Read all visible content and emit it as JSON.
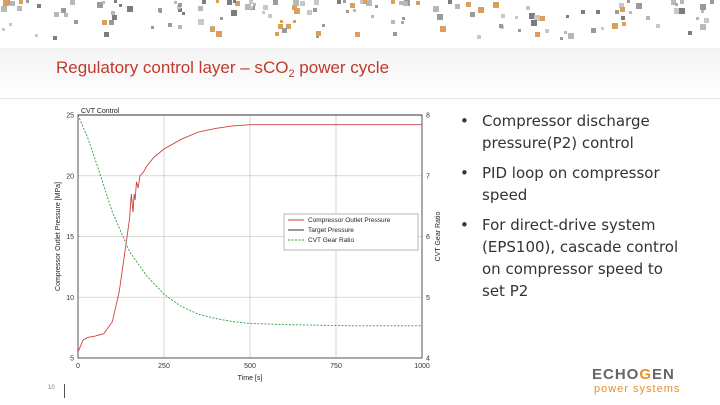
{
  "slide": {
    "title_main": "Regulatory control layer – s",
    "title_co": "CO",
    "title_sub": "2",
    "title_end": " power cycle",
    "page_number": "10"
  },
  "bullets": [
    "Compressor discharge pressure(P2) control",
    "PID loop on compressor speed",
    "For direct-drive system (EPS100), cascade control on compressor speed to set P2"
  ],
  "logo": {
    "word_start": "ECHO",
    "word_accent": "G",
    "word_end": "EN",
    "tagline": "power systems"
  },
  "colors": {
    "accent": "#c0392b",
    "pressure": "#d04040",
    "target": "#333333",
    "gear": "#2e9e3e",
    "logo_orange": "#e8912d"
  },
  "chart_data": {
    "type": "line",
    "title": "CVT Control",
    "xlabel": "Time [s]",
    "ylabel": "Compressor Outlet Pressure [MPa]",
    "y2label": "CVT Gear Ratio",
    "xlim": [
      0,
      1000
    ],
    "ylim": [
      5,
      25
    ],
    "y2lim": [
      4,
      8
    ],
    "x_ticks": [
      0,
      250,
      500,
      750,
      1000
    ],
    "y_ticks": [
      5,
      10,
      15,
      20,
      25
    ],
    "y2_ticks": [
      4,
      5,
      6,
      7,
      8
    ],
    "grid": true,
    "legend_position": "center-right",
    "series": [
      {
        "name": "Compressor Outlet Pressure",
        "axis": "left",
        "color": "#d04040",
        "x": [
          0,
          15,
          30,
          50,
          75,
          100,
          120,
          140,
          150,
          155,
          160,
          163,
          166,
          170,
          175,
          180,
          190,
          200,
          220,
          250,
          300,
          350,
          400,
          450,
          500,
          550,
          600,
          700,
          800,
          1000
        ],
        "y": [
          5.5,
          6.5,
          6.7,
          6.8,
          7.0,
          8.0,
          10.5,
          14.5,
          16.5,
          18.5,
          17.0,
          18.5,
          18.0,
          19.5,
          19.0,
          20.0,
          20.3,
          20.8,
          21.5,
          22.2,
          23.0,
          23.6,
          23.9,
          24.1,
          24.2,
          24.2,
          24.2,
          24.2,
          24.2,
          24.2
        ]
      },
      {
        "name": "Target Pressure",
        "axis": "left",
        "color": "#333333",
        "x": [
          0,
          1000
        ],
        "y": [
          25,
          25
        ]
      },
      {
        "name": "CVT Gear Ratio",
        "axis": "right",
        "color": "#2e9e3e",
        "x": [
          0,
          30,
          60,
          100,
          150,
          200,
          250,
          300,
          350,
          400,
          450,
          500,
          600,
          700,
          800,
          900,
          1000
        ],
        "y": [
          8.0,
          7.6,
          7.1,
          6.4,
          5.75,
          5.35,
          5.05,
          4.85,
          4.72,
          4.65,
          4.6,
          4.57,
          4.55,
          4.54,
          4.53,
          4.53,
          4.53
        ]
      }
    ]
  }
}
